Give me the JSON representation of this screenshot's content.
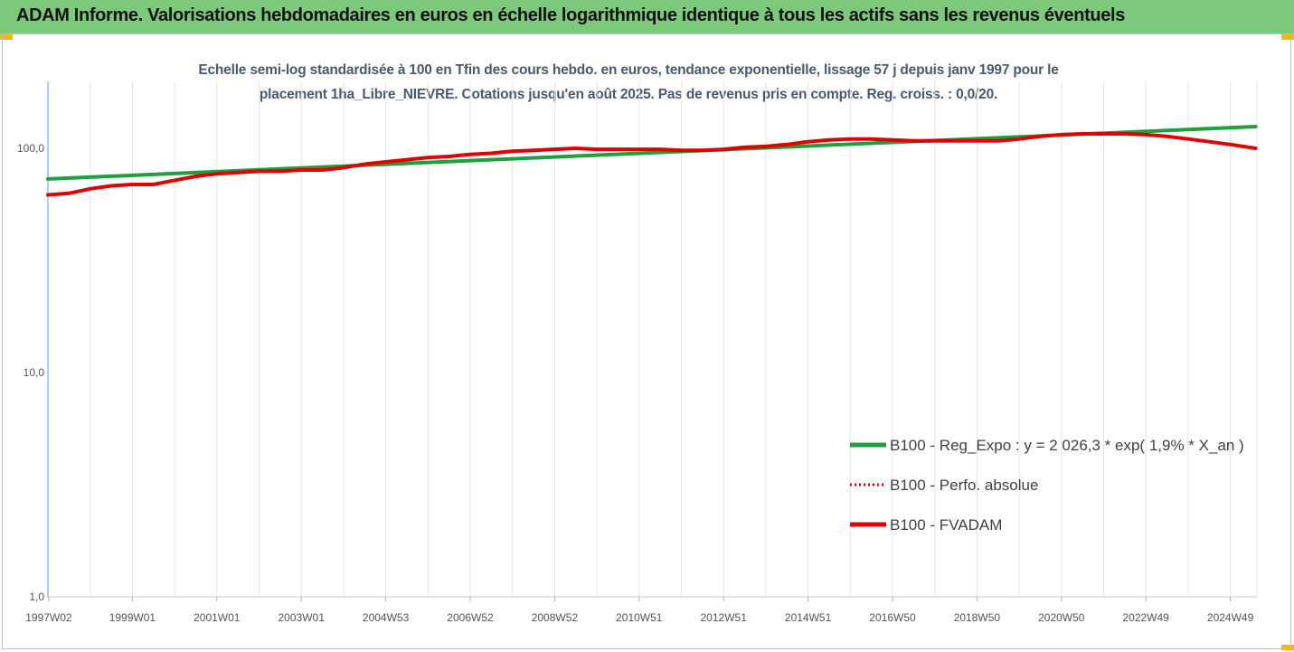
{
  "header": {
    "title": "ADAM Informe. Valorisations hebdomadaires en euros en échelle logarithmique identique à tous les actifs sans les revenus éventuels"
  },
  "chart_data": {
    "type": "line",
    "title": "Echelle semi-log standardisée à 100 en Tfin des cours hebdo. en euros, tendance exponentielle, lissage 57 j depuis janv 1997 pour le",
    "subtitle": "placement 1ha_Libre_NIEVRE. Cotations jusqu'en août 2025. Pas de revenus pris en compte. Reg. croiss. : 0,0/20.",
    "y_scale": "log",
    "ylim": [
      1,
      200
    ],
    "y_ticks": [
      {
        "value": 100,
        "label": "100,0"
      },
      {
        "value": 10,
        "label": "10,0"
      },
      {
        "value": 1,
        "label": "1,0"
      }
    ],
    "x_range": [
      1997.0,
      2025.63
    ],
    "x_ticks": [
      {
        "label": "1997W02",
        "value": 1997.02
      },
      {
        "label": "1999W01",
        "value": 1999.0
      },
      {
        "label": "2001W01",
        "value": 2001.0
      },
      {
        "label": "2003W01",
        "value": 2003.0
      },
      {
        "label": "2004W53",
        "value": 2005.0
      },
      {
        "label": "2006W52",
        "value": 2007.0
      },
      {
        "label": "2008W52",
        "value": 2009.0
      },
      {
        "label": "2010W51",
        "value": 2011.0
      },
      {
        "label": "2012W51",
        "value": 2013.0
      },
      {
        "label": "2014W51",
        "value": 2015.0
      },
      {
        "label": "2016W50",
        "value": 2017.0
      },
      {
        "label": "2018W50",
        "value": 2019.0
      },
      {
        "label": "2020W50",
        "value": 2021.0
      },
      {
        "label": "2022W49",
        "value": 2023.0
      },
      {
        "label": "2024W49",
        "value": 2025.0
      }
    ],
    "grid": "vertical",
    "legend_position": "right",
    "series": [
      {
        "name": "B100 - Reg_Expo : y = 2 026,3 * exp( 1,9% *  X_an )",
        "color": "#1ea03e",
        "style": "solid",
        "x": [
          1997.0,
          2025.6
        ],
        "y": [
          73,
          125
        ]
      },
      {
        "name": "B100 - Perfo. absolue",
        "color": "#e00000",
        "style": "dotted",
        "x": [],
        "y": []
      },
      {
        "name": "B100 - FVADAM",
        "color": "#e00000",
        "style": "solid",
        "x": [
          1997.0,
          1997.5,
          1998.0,
          1998.5,
          1999.0,
          1999.5,
          2000.0,
          2000.5,
          2001.0,
          2001.5,
          2002.0,
          2002.5,
          2003.0,
          2003.5,
          2004.0,
          2004.5,
          2005.0,
          2005.5,
          2006.0,
          2006.5,
          2007.0,
          2007.5,
          2008.0,
          2008.5,
          2009.0,
          2009.5,
          2010.0,
          2010.5,
          2011.0,
          2011.5,
          2012.0,
          2012.5,
          2013.0,
          2013.5,
          2014.0,
          2014.5,
          2015.0,
          2015.5,
          2016.0,
          2016.5,
          2017.0,
          2017.5,
          2018.0,
          2018.5,
          2019.0,
          2019.5,
          2020.0,
          2020.5,
          2021.0,
          2021.5,
          2022.0,
          2022.5,
          2023.0,
          2023.5,
          2024.0,
          2024.5,
          2025.0,
          2025.6
        ],
        "y": [
          62,
          63,
          66,
          68,
          69,
          69,
          72,
          75,
          77,
          78,
          79,
          79,
          80,
          80,
          82,
          85,
          87,
          89,
          91,
          92,
          94,
          95,
          97,
          98,
          99,
          100,
          99,
          99,
          99,
          99,
          98,
          98,
          99,
          101,
          102,
          104,
          107,
          109,
          110,
          110,
          109,
          108,
          108,
          108,
          108,
          108,
          110,
          113,
          115,
          116,
          116,
          116,
          115,
          113,
          110,
          107,
          104,
          100
        ]
      }
    ]
  }
}
